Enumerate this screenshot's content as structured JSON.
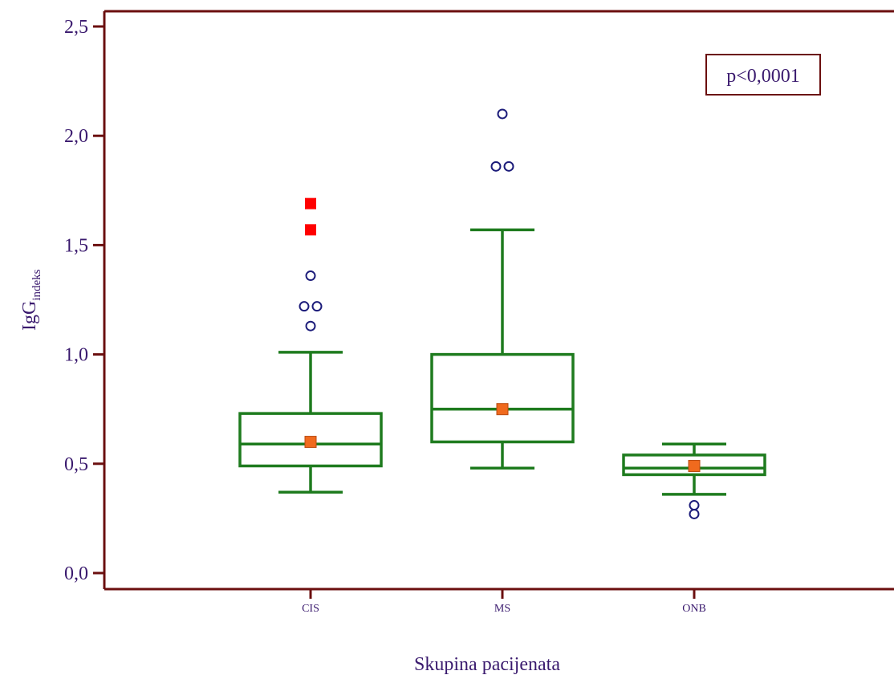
{
  "chart_data": {
    "type": "box",
    "ylabel_main": "IgG",
    "ylabel_sub": "indeks",
    "xlabel": "Skupina pacijenata",
    "annotation": "p<0,0001",
    "ylim": [
      0,
      2.5
    ],
    "yticks": [
      {
        "value": 0,
        "label": "0,0"
      },
      {
        "value": 0.5,
        "label": "0,5"
      },
      {
        "value": 1.0,
        "label": "1,0"
      },
      {
        "value": 1.5,
        "label": "1,5"
      },
      {
        "value": 2.0,
        "label": "2,0"
      },
      {
        "value": 2.5,
        "label": "2,5"
      }
    ],
    "categories": [
      "CIS",
      "MS",
      "ONB"
    ],
    "boxes": [
      {
        "category": "CIS",
        "whisker_low": 0.37,
        "q1": 0.49,
        "median": 0.59,
        "q3": 0.73,
        "whisker_high": 1.01,
        "mean": 0.6,
        "outliers": [
          1.13,
          1.22,
          1.22,
          1.36
        ],
        "far_outliers": [
          1.57,
          1.69
        ]
      },
      {
        "category": "MS",
        "whisker_low": 0.48,
        "q1": 0.6,
        "median": 0.75,
        "q3": 1.0,
        "whisker_high": 1.57,
        "mean": 0.75,
        "outliers": [
          1.86,
          1.86,
          2.1
        ],
        "far_outliers": []
      },
      {
        "category": "ONB",
        "whisker_low": 0.36,
        "q1": 0.45,
        "median": 0.48,
        "q3": 0.54,
        "whisker_high": 0.59,
        "mean": 0.49,
        "outliers": [
          0.27,
          0.31
        ],
        "far_outliers": []
      }
    ],
    "colors": {
      "axis": "#6b0f0f",
      "box": "#1e7b1e",
      "mean_marker": "#f06a1e",
      "far_outlier": "#ff0000",
      "outlier": "#1c1c7a",
      "text": "#3a1a6e"
    }
  }
}
